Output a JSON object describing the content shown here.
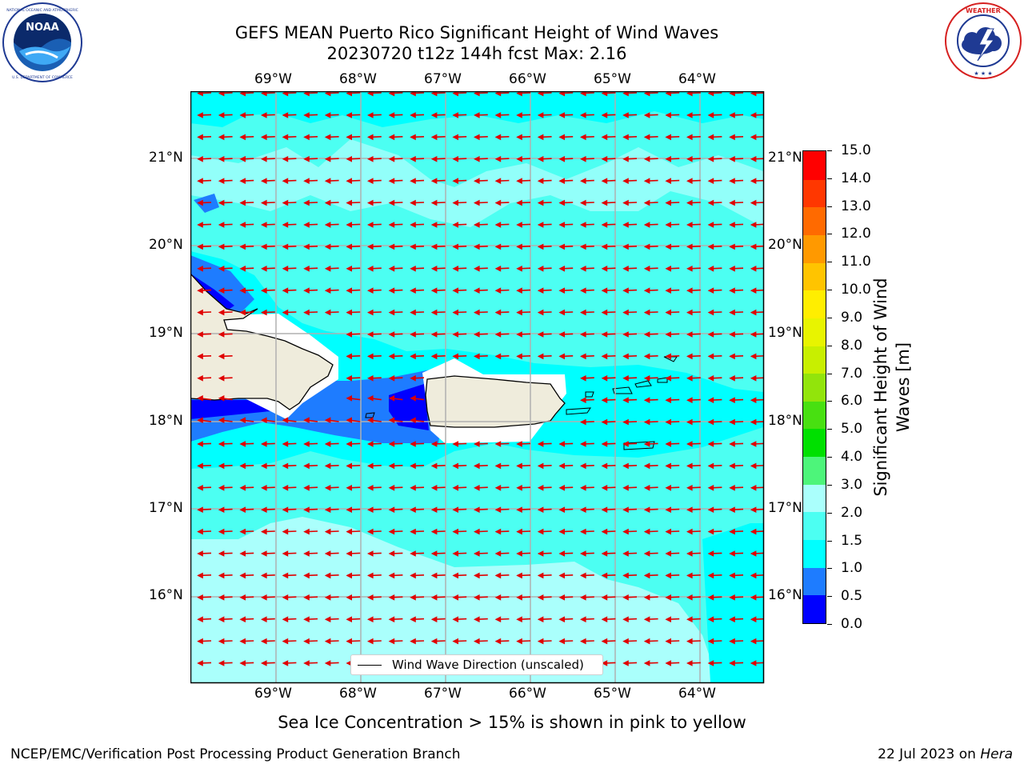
{
  "title": {
    "line1": "GEFS MEAN Puerto Rico Significant Height of Wind Waves",
    "line2": "20230720 t12z 144h fcst   Max: 2.16"
  },
  "map": {
    "lon_labels": [
      "69°W",
      "68°W",
      "67°W",
      "66°W",
      "65°W",
      "64°W"
    ],
    "lat_labels": [
      "21°N",
      "20°N",
      "19°N",
      "18°N",
      "17°N",
      "16°N"
    ],
    "legend_label": "Wind Wave Direction (unscaled)",
    "arrow_direction": "westward"
  },
  "colorbar": {
    "label_line1": "Significant Height of Wind",
    "label_line2": "Waves [m]",
    "ticks": [
      "0.0",
      "0.5",
      "1.0",
      "1.5",
      "2.0",
      "3.0",
      "4.0",
      "5.0",
      "6.0",
      "7.0",
      "8.0",
      "9.0",
      "10.0",
      "11.0",
      "12.0",
      "13.0",
      "14.0",
      "15.0"
    ],
    "colors": [
      "#0000ff",
      "#1e7cff",
      "#00ffff",
      "#4cfff2",
      "#aafffc",
      "#4df57a",
      "#00e000",
      "#48e011",
      "#92e40b",
      "#c8ef00",
      "#e8f400",
      "#ffee00",
      "#ffc400",
      "#ff9900",
      "#ff6a00",
      "#ff3700",
      "#ff0000"
    ]
  },
  "note": "Sea Ice Concentration > 15% is shown in pink to yellow",
  "footer": {
    "left": "NCEP/EMC/Verification Post Processing Product Generation Branch",
    "date": "22 Jul 2023 on ",
    "machine": "Hera"
  },
  "logos": {
    "noaa_text": "NOAA",
    "noaa_ring_text": "NATIONAL OCEANIC AND ATMOSPHERIC ADMINISTRATION",
    "noaa_ring_bottom": "U.S. DEPARTMENT OF COMMERCE",
    "nws_ring_text": "NATIONAL WEATHER SERVICE"
  },
  "colors": {
    "land": "#efecdc",
    "ocean_light": "#aafffc",
    "ocean_mid": "#4cfff2",
    "ocean_high": "#00ffff",
    "wave_blue": "#1e7cff",
    "wave_dark": "#0000ff",
    "arrow": "#ff0000",
    "grid": "#b0b0b0"
  }
}
